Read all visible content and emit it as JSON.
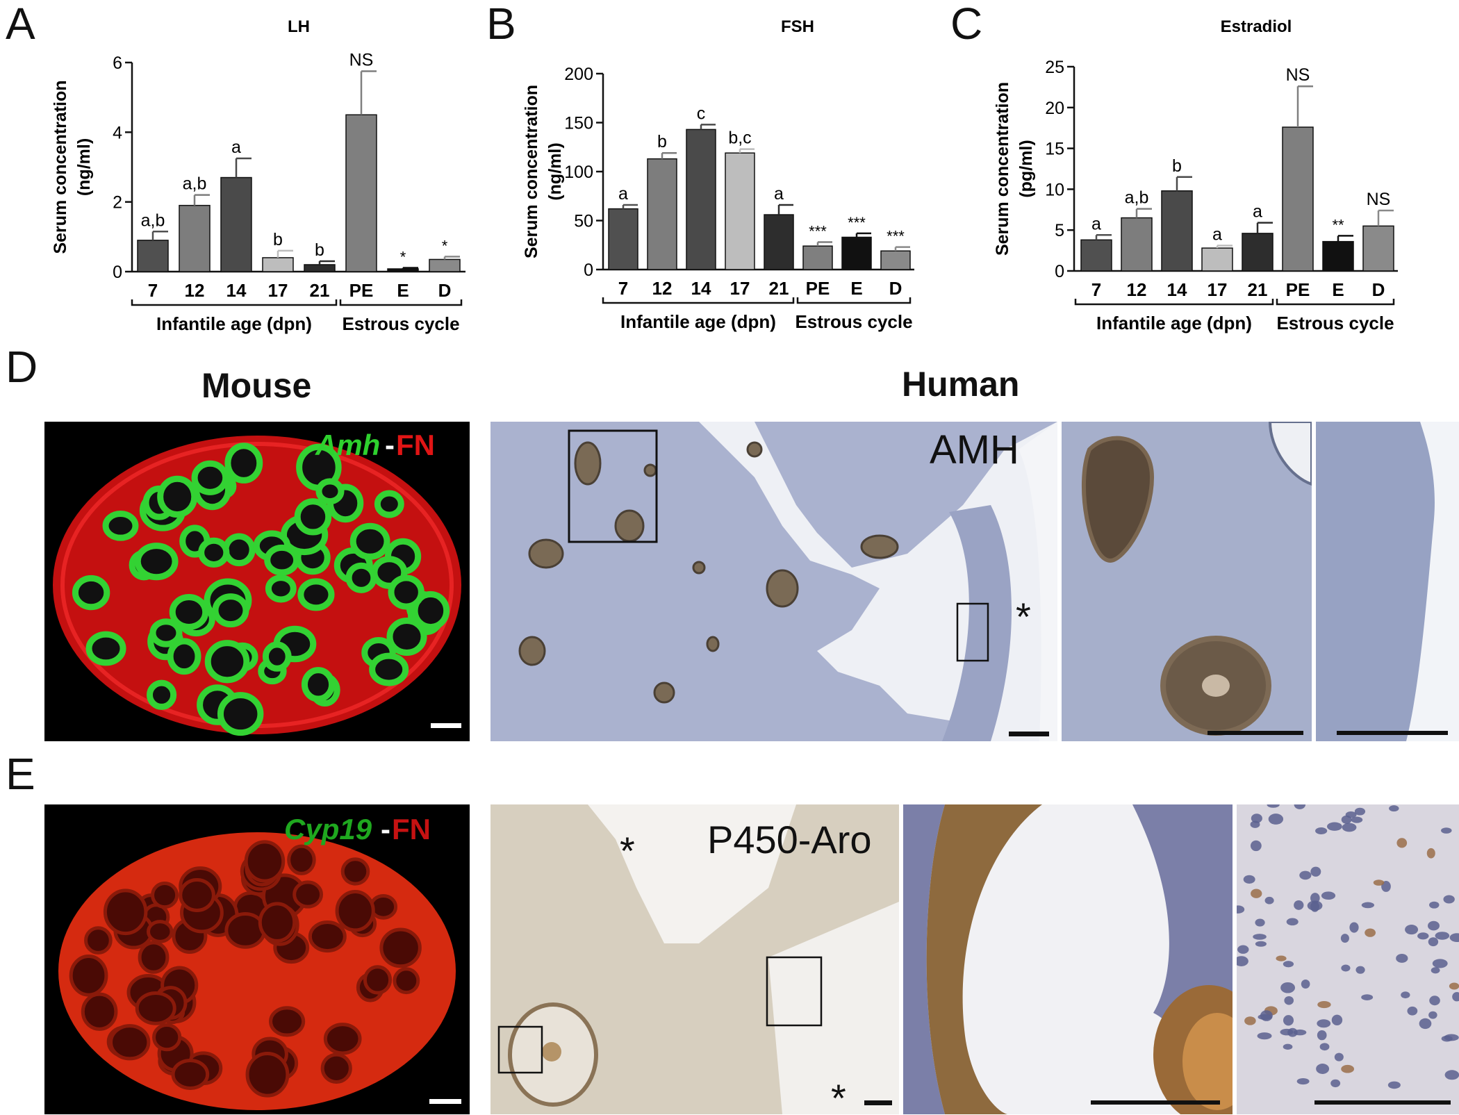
{
  "panels": {
    "A": "A",
    "B": "B",
    "C": "C",
    "D": "D",
    "E": "E"
  },
  "charts_common": {
    "ylabel": "Serum concentration",
    "group_infantile": "Infantile age (dpn)",
    "group_estrous": "Estrous cycle"
  },
  "chart_data": [
    {
      "type": "bar",
      "panel": "A",
      "title": "LH",
      "ylabel": "Serum concentration",
      "yunit": "(ng/ml)",
      "ylim": [
        0,
        6
      ],
      "yticks": [
        "0",
        "2",
        "4",
        "6"
      ],
      "yticks_values": [
        0,
        2,
        4,
        6
      ],
      "categories": [
        "7",
        "12",
        "14",
        "17",
        "21",
        "PE",
        "E",
        "D"
      ],
      "values": [
        0.9,
        1.9,
        2.7,
        0.4,
        0.2,
        4.5,
        0.08,
        0.35
      ],
      "errors": [
        0.25,
        0.3,
        0.55,
        0.2,
        0.1,
        1.25,
        0.03,
        0.08
      ],
      "labels": [
        "a,b",
        "a,b",
        "a",
        "b",
        "b",
        "NS",
        "*",
        "*"
      ],
      "colors": [
        "#505050",
        "#7d7d7d",
        "#4a4a4a",
        "#bdbdbd",
        "#2d2d2d",
        "#7f7f7f",
        "#111111",
        "#8a8a8a"
      ],
      "groups": [
        {
          "name": "Infantile age (dpn)",
          "count": 5
        },
        {
          "name": "Estrous cycle",
          "count": 3
        }
      ]
    },
    {
      "type": "bar",
      "panel": "B",
      "title": "FSH",
      "ylabel": "Serum concentration",
      "yunit": "(ng/ml)",
      "ylim": [
        0,
        200
      ],
      "yticks": [
        "0",
        "50",
        "100",
        "150",
        "200"
      ],
      "yticks_values": [
        0,
        50,
        100,
        150,
        200
      ],
      "categories": [
        "7",
        "12",
        "14",
        "17",
        "21",
        "PE",
        "E",
        "D"
      ],
      "values": [
        62,
        113,
        143,
        119,
        56,
        24,
        33,
        19
      ],
      "errors": [
        4,
        6,
        5,
        4,
        10,
        4,
        4,
        4
      ],
      "labels": [
        "a",
        "b",
        "c",
        "b,c",
        "a",
        "***",
        "***",
        "***"
      ],
      "colors": [
        "#505050",
        "#7d7d7d",
        "#4a4a4a",
        "#bdbdbd",
        "#2d2d2d",
        "#7f7f7f",
        "#111111",
        "#8a8a8a"
      ],
      "groups": [
        {
          "name": "Infantile age (dpn)",
          "count": 5
        },
        {
          "name": "Estrous cycle",
          "count": 3
        }
      ]
    },
    {
      "type": "bar",
      "panel": "C",
      "title": "Estradiol",
      "ylabel": "Serum concentration",
      "yunit": "(pg/ml)",
      "ylim": [
        0,
        25
      ],
      "yticks": [
        "0",
        "5",
        "10",
        "15",
        "20",
        "25"
      ],
      "yticks_values": [
        0,
        5,
        10,
        15,
        20,
        25
      ],
      "categories": [
        "7",
        "12",
        "14",
        "17",
        "21",
        "PE",
        "E",
        "D"
      ],
      "values": [
        3.8,
        6.5,
        9.8,
        2.8,
        4.6,
        17.6,
        3.6,
        5.5
      ],
      "errors": [
        0.6,
        1.1,
        1.7,
        0.3,
        1.3,
        5.0,
        0.7,
        1.9
      ],
      "labels": [
        "a",
        "a,b",
        "b",
        "a",
        "a",
        "NS",
        "**",
        "NS"
      ],
      "colors": [
        "#505050",
        "#7d7d7d",
        "#4a4a4a",
        "#bdbdbd",
        "#2d2d2d",
        "#7f7f7f",
        "#111111",
        "#8a8a8a"
      ],
      "groups": [
        {
          "name": "Infantile age (dpn)",
          "count": 5
        },
        {
          "name": "Estrous cycle",
          "count": 3
        }
      ]
    }
  ],
  "section_D": {
    "mouse_title": "Mouse",
    "human_title": "Human",
    "mouse_gene": "Amh",
    "mouse_dash": "-",
    "mouse_stain": "FN",
    "human_label": "AMH",
    "asterisk": "*"
  },
  "section_E": {
    "mouse_gene": "Cyp19",
    "mouse_dash": "-",
    "mouse_stain": "FN",
    "human_label": "P450-Aro",
    "asterisk": "*"
  }
}
